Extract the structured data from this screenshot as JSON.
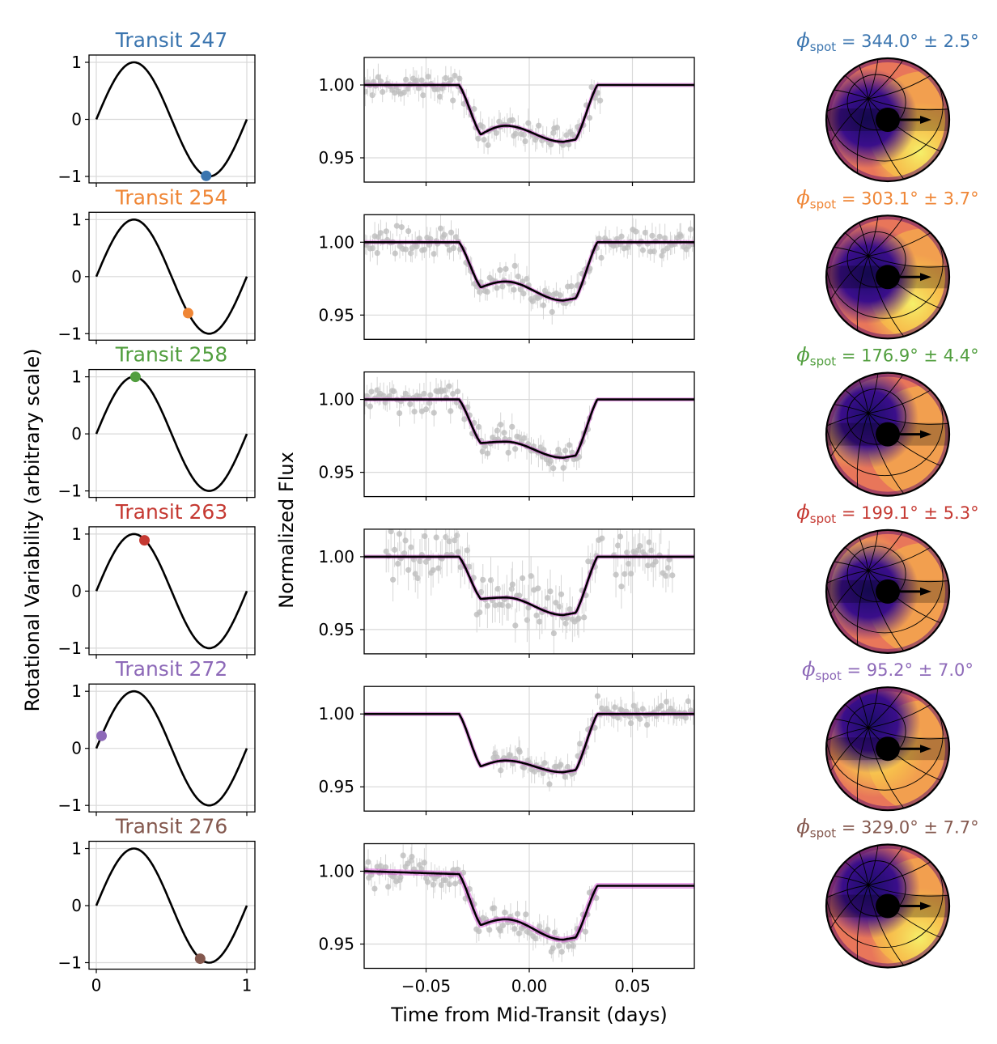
{
  "chart_data": {
    "type": "line",
    "layout": "6 rows x 3 columns of subplots",
    "colors": {
      "Transit 247": "#3b75af",
      "Transit 254": "#ef8636",
      "Transit 258": "#519e3e",
      "Transit 263": "#c53932",
      "Transit 272": "#8d69b8",
      "Transit 276": "#84584e",
      "model_line": "#000000",
      "model_samples": "#d23bd2",
      "data_points": "#bdbdbd",
      "grid": "#d9d9d9"
    },
    "left_column": {
      "ylabel": "Rotational Variability (arbitrary scale)",
      "x_ticks": [
        "0",
        "1"
      ],
      "y_ticks": [
        "1",
        "0",
        "−1"
      ],
      "xlim": [
        0,
        1
      ],
      "ylim": [
        -1.05,
        1.05
      ],
      "curve": "sin(2*pi*x)",
      "grid": true
    },
    "middle_column": {
      "ylabel": "Normalized Flux",
      "xlabel": "Time from Mid-Transit (days)",
      "x_ticks": [
        "−0.05",
        "0.00",
        "0.05"
      ],
      "x_tick_values": [
        -0.05,
        0.0,
        0.05
      ],
      "y_ticks": [
        "1.00",
        "0.95"
      ],
      "y_tick_values": [
        1.0,
        0.95
      ],
      "xlim": [
        -0.08,
        0.08
      ],
      "ylim": [
        0.933,
        1.02
      ],
      "grid": true
    },
    "right_column": {
      "label_prefix": "ϕ",
      "label_sub": "spot",
      "description": "Stellar surface maps (inferno colormap) with spot arrow"
    },
    "panels": [
      {
        "title": "Transit 247",
        "phase": 0.73,
        "phase_value": -0.99,
        "phi_spot": "344.0",
        "phi_err": "2.5",
        "model": {
          "ingress": -0.034,
          "egress": 0.033,
          "d1": 0.966,
          "hump": 0.972,
          "d2": 0.961,
          "baseline_end": 1.0
        },
        "data_range": [
          -0.08,
          0.035
        ],
        "label_text": " = 344.0° ± 2.5°"
      },
      {
        "title": "Transit 254",
        "phase": 0.61,
        "phase_value": -0.64,
        "phi_spot": "303.1",
        "phi_err": "3.7",
        "model": {
          "ingress": -0.034,
          "egress": 0.033,
          "d1": 0.969,
          "hump": 0.973,
          "d2": 0.96,
          "baseline_end": 1.0
        },
        "data_range": [
          -0.08,
          0.08
        ],
        "label_text": " = 303.1° ± 3.7°"
      },
      {
        "title": "Transit 258",
        "phase": 0.26,
        "phase_value": 1.0,
        "phi_spot": "176.9",
        "phi_err": "4.4",
        "model": {
          "ingress": -0.034,
          "egress": 0.033,
          "d1": 0.97,
          "hump": 0.971,
          "d2": 0.96,
          "baseline_end": 1.0
        },
        "data_range": [
          -0.08,
          0.03
        ],
        "label_text": " = 176.9° ± 4.4°"
      },
      {
        "title": "Transit 263",
        "phase": 0.32,
        "phase_value": 0.89,
        "phi_spot": "199.1",
        "phi_err": "5.3",
        "model": {
          "ingress": -0.034,
          "egress": 0.033,
          "d1": 0.971,
          "hump": 0.972,
          "d2": 0.96,
          "baseline_end": 1.0
        },
        "data_range": [
          -0.07,
          0.07
        ],
        "label_text": " = 199.1° ± 5.3°"
      },
      {
        "title": "Transit 272",
        "phase": 0.035,
        "phase_value": 0.22,
        "phi_spot": "95.2",
        "phi_err": "7.0",
        "model": {
          "ingress": -0.034,
          "egress": 0.033,
          "d1": 0.964,
          "hump": 0.968,
          "d2": 0.96,
          "baseline_end": 1.0
        },
        "data_range": [
          -0.018,
          0.08
        ],
        "label_text": " = 95.2° ± 7.0°"
      },
      {
        "title": "Transit 276",
        "phase": 0.69,
        "phase_value": -0.93,
        "phi_spot": "329.0",
        "phi_err": "7.7",
        "model": {
          "ingress": -0.034,
          "egress": 0.033,
          "d1": 0.963,
          "hump": 0.967,
          "d2": 0.953,
          "baseline_end": 0.99,
          "baseline_start": 1.0,
          "pre_slope_end": 0.998
        },
        "data_range": [
          -0.08,
          0.033
        ],
        "label_text": " = 329.0° ± 7.7°"
      }
    ]
  }
}
